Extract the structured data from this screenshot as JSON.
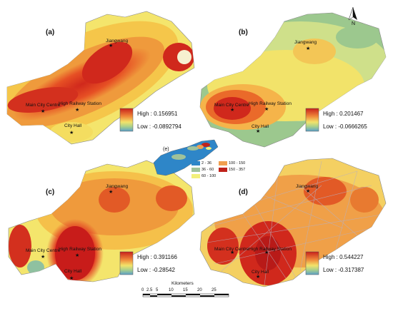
{
  "panels": [
    {
      "label": "(a)",
      "legend_high": "High : 0.156951",
      "legend_low": "Low : -0.0892794"
    },
    {
      "label": "(b)",
      "legend_high": "High : 0.201467",
      "legend_low": "Low : -0.0666265"
    },
    {
      "label": "(c)",
      "legend_high": "High : 0.391166",
      "legend_low": "Low : -0.28542"
    },
    {
      "label": "(d)",
      "legend_high": "High : 0.544227",
      "legend_low": "Low : -0.317387"
    }
  ],
  "places": {
    "jiangwang": "Jiangwang",
    "main_city_centre": "Main City Centre",
    "high_railway_station": "High Railway Station",
    "city_hall": "City Hall"
  },
  "inset": {
    "label": "(e)",
    "classes": [
      {
        "label": "2 - 36",
        "color": "#2e86c8"
      },
      {
        "label": "36 - 60",
        "color": "#9fc29a"
      },
      {
        "label": "60 - 100",
        "color": "#f2f07a"
      },
      {
        "label": "100 - 150",
        "color": "#f0a050"
      },
      {
        "label": "150 - 357",
        "color": "#c0221b"
      }
    ]
  },
  "north_label": "N",
  "scale_bar": {
    "title": "Kilometers",
    "ticks": [
      "0",
      "2.5",
      "5",
      "10",
      "15",
      "20",
      "25"
    ]
  },
  "colors": {
    "ramp_high": "#c8201b",
    "ramp_mid": "#f2e36a",
    "ramp_low": "#5b9fc8"
  }
}
